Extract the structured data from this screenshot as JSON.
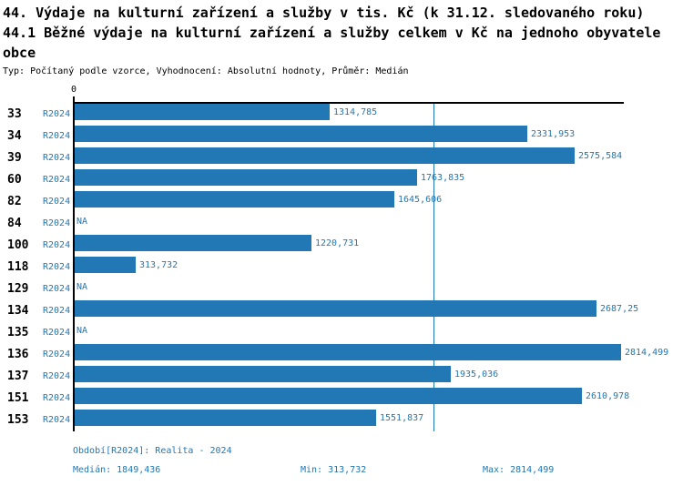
{
  "header": {
    "title_line1": "44. Výdaje na kulturní zařízení a služby v tis. Kč (k 31.12. sledovaného roku)",
    "title_line2": "44.1 Běžné výdaje na kulturní zařízení a služby celkem v Kč na jednoho obyvatele obce",
    "meta": "Typ: Počítaný podle vzorce, Vyhodnocení: Absolutní hodnoty, Průměr: Medián"
  },
  "chart_data": {
    "type": "bar",
    "orientation": "horizontal",
    "series_label": "R2024",
    "categories": [
      "33",
      "34",
      "39",
      "60",
      "82",
      "84",
      "100",
      "118",
      "129",
      "134",
      "135",
      "136",
      "137",
      "151",
      "153"
    ],
    "values": [
      1314.785,
      2331.953,
      2575.584,
      1763.835,
      1645.606,
      null,
      1220.731,
      313.732,
      null,
      2687.25,
      null,
      2814.499,
      1935.036,
      2610.978,
      1551.837
    ],
    "value_labels": [
      "1314,785",
      "2331,953",
      "2575,584",
      "1763,835",
      "1645,606",
      "NA",
      "1220,731",
      "313,732",
      "NA",
      "2687,25",
      "NA",
      "2814,499",
      "1935,036",
      "2610,978",
      "1551,837"
    ],
    "na_label": "NA",
    "zero_tick_label": "0",
    "xlim": [
      0,
      2814.499
    ],
    "median_line_value": 1849.436,
    "grid": false,
    "legend": "none",
    "bar_color": "#2278b5",
    "text_color": "#1f77b4",
    "median_line_color": "#1f77b4",
    "axis_color": "#000000"
  },
  "footer": {
    "period": "Období[R2024]: Realita - 2024",
    "median": "Medián: 1849,436",
    "min": "Min: 313,732",
    "max": "Max: 2814,499"
  }
}
